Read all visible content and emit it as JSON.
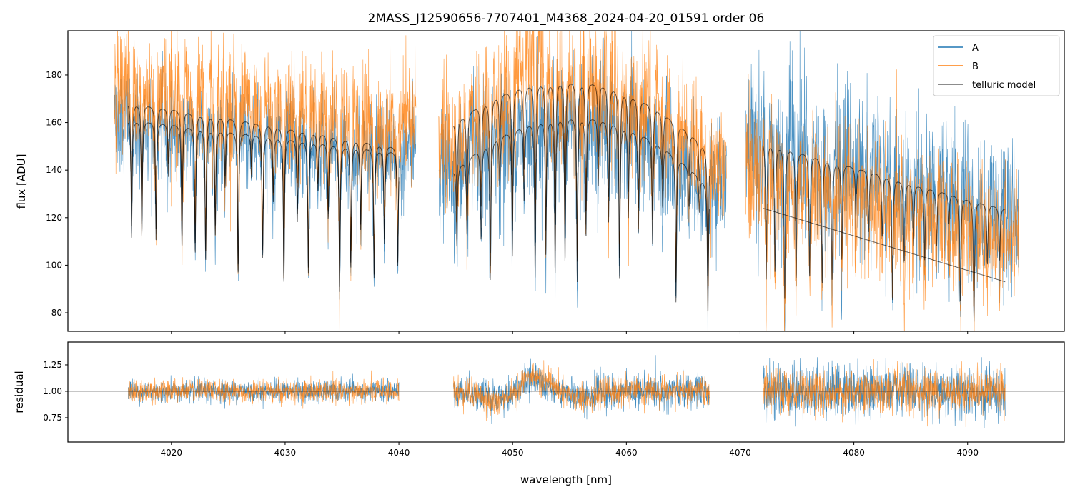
{
  "chart_data": {
    "type": "line",
    "title": "2MASS_J12590656-7707401_M4368_2024-04-20_01591  order 06",
    "xlabel": "wavelength [nm]",
    "xlim": [
      4010.9,
      4098.5
    ],
    "xticks": [
      4020,
      4030,
      4040,
      4050,
      4060,
      4070,
      4080,
      4090
    ],
    "top": {
      "ylabel": "flux [ADU]",
      "ylim": [
        72.2,
        198.6
      ],
      "yticks": [
        80,
        100,
        120,
        140,
        160,
        180
      ],
      "legend": {
        "placement": "top-right",
        "entries": [
          "A",
          "B",
          "telluric model"
        ]
      },
      "segments": [
        {
          "range": [
            4015.0,
            4041.5
          ],
          "model_range": [
            4016.2,
            4040.0
          ],
          "model_A": [
            162,
            155,
            148
          ],
          "model_B": [
            169,
            160,
            150
          ],
          "A_level": 1.0,
          "B_level": 1.02,
          "noise_A": 0.07,
          "noise_B": 0.08,
          "B_has_lines": true
        },
        {
          "range": [
            4043.5,
            4068.8
          ],
          "model_range": [
            4044.8,
            4067.3
          ],
          "model_A": [
            140,
            163,
            133
          ],
          "model_B": [
            160,
            178,
            148
          ],
          "A_level": 1.0,
          "B_level": 1.03,
          "noise_A": 0.09,
          "noise_B": 0.09,
          "B_has_lines": true
        },
        {
          "range": [
            4070.5,
            4094.5
          ],
          "model_range": [
            4072.0,
            4093.3
          ],
          "model_A": [
            153,
            138,
            124
          ],
          "model_B": [
            124,
            108.5,
            93
          ],
          "A_level": 1.0,
          "B_level": 1.0,
          "noise_A": 0.12,
          "noise_B": 0.11,
          "B_has_lines": false
        }
      ]
    },
    "bottom": {
      "ylabel": "residual",
      "ylim": [
        0.52,
        1.466
      ],
      "yticks": [
        "0.75",
        "1.00",
        "1.25"
      ],
      "reference": 1.0,
      "segments": [
        {
          "range": [
            4016.2,
            4040.0
          ],
          "noise_A": 0.05,
          "noise_B": 0.055
        },
        {
          "range": [
            4044.8,
            4067.3
          ],
          "noise_A": 0.08,
          "noise_B": 0.07
        },
        {
          "range": [
            4072.0,
            4093.3
          ],
          "noise_A": 0.13,
          "noise_B": 0.1
        }
      ]
    },
    "colors": {
      "A": "#1f77b4",
      "B": "#ff7f0e",
      "model": "#333333"
    }
  }
}
